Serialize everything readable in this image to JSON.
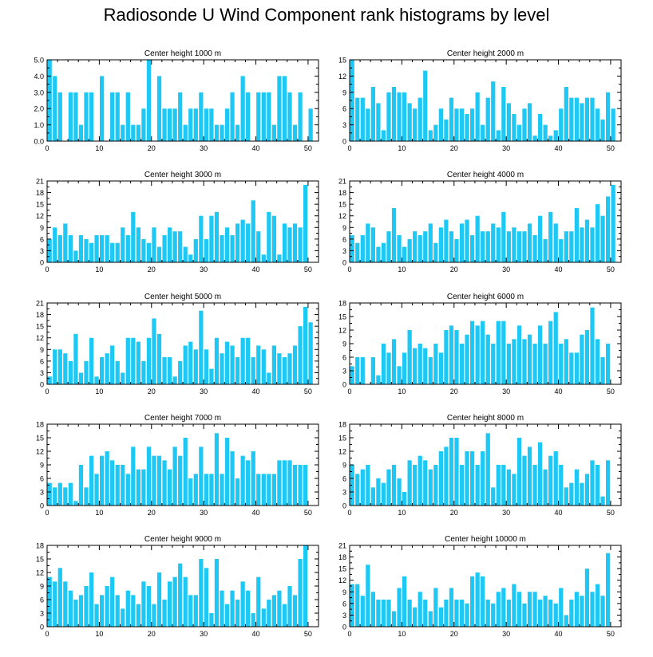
{
  "title": "Radiosonde U Wind Component rank histograms by level",
  "bar_color": "#1ec8f5",
  "chart_data": [
    {
      "type": "bar",
      "title": "Center height 1000 m",
      "xlim": [
        0,
        52
      ],
      "ylim": [
        0,
        5
      ],
      "yticks": [
        "0.0",
        "1.0",
        "2.0",
        "3.0",
        "4.0",
        "5.0"
      ],
      "xticks": [
        0,
        10,
        20,
        30,
        40,
        50
      ],
      "values": [
        5,
        4,
        3,
        0,
        3,
        3,
        1,
        3,
        3,
        0,
        4,
        0,
        3,
        3,
        1,
        3,
        1,
        1,
        2,
        5,
        0,
        4,
        2,
        2,
        2,
        3,
        1,
        2,
        2,
        3,
        2,
        2,
        1,
        1,
        2,
        3,
        1,
        4,
        3,
        0,
        3,
        3,
        3,
        1,
        4,
        4,
        3,
        1,
        3,
        0,
        2
      ]
    },
    {
      "type": "bar",
      "title": "Center height 2000 m",
      "xlim": [
        0,
        52
      ],
      "ylim": [
        0,
        15
      ],
      "yticks": [
        "0",
        "3",
        "6",
        "9",
        "12",
        "15"
      ],
      "xticks": [
        0,
        10,
        20,
        30,
        40,
        50
      ],
      "values": [
        15,
        8,
        8,
        6,
        10,
        7,
        2,
        9,
        10,
        9,
        9,
        7,
        6,
        8,
        13,
        2,
        3,
        6,
        4,
        8,
        6,
        6,
        5,
        6,
        9,
        3,
        8,
        11,
        2,
        10,
        7,
        5,
        3,
        6,
        7,
        1,
        5,
        3,
        1,
        2,
        6,
        10,
        8,
        8,
        7,
        8,
        8,
        6,
        4,
        9,
        6
      ]
    },
    {
      "type": "bar",
      "title": "Center height 3000 m",
      "xlim": [
        0,
        52
      ],
      "ylim": [
        0,
        21
      ],
      "yticks": [
        "0",
        "3",
        "6",
        "9",
        "12",
        "15",
        "18",
        "21"
      ],
      "xticks": [
        0,
        10,
        20,
        30,
        40,
        50
      ],
      "values": [
        6,
        9,
        7,
        10,
        7,
        3,
        7,
        6,
        5,
        7,
        7,
        7,
        5,
        5,
        9,
        7,
        13,
        9,
        6,
        5,
        9,
        4,
        7,
        9,
        8,
        8,
        4,
        2,
        6,
        12,
        6,
        12,
        13,
        7,
        9,
        7,
        10,
        11,
        10,
        16,
        8,
        2,
        13,
        12,
        2,
        10,
        9,
        10,
        9,
        20
      ]
    },
    {
      "type": "bar",
      "title": "Center height 4000 m",
      "xlim": [
        0,
        52
      ],
      "ylim": [
        0,
        21
      ],
      "yticks": [
        "0",
        "3",
        "6",
        "9",
        "12",
        "15",
        "18",
        "21"
      ],
      "xticks": [
        0,
        10,
        20,
        30,
        40,
        50
      ],
      "values": [
        7,
        5,
        7,
        10,
        9,
        4,
        5,
        8,
        14,
        7,
        4,
        6,
        8,
        7,
        8,
        10,
        5,
        9,
        11,
        8,
        6,
        10,
        11,
        7,
        12,
        8,
        8,
        10,
        9,
        13,
        8,
        9,
        8,
        8,
        10,
        7,
        12,
        6,
        13,
        10,
        6,
        8,
        8,
        14,
        9,
        11,
        9,
        15,
        12,
        17,
        20
      ]
    },
    {
      "type": "bar",
      "title": "Center height 5000 m",
      "xlim": [
        0,
        52
      ],
      "ylim": [
        0,
        21
      ],
      "yticks": [
        "0",
        "3",
        "6",
        "9",
        "12",
        "15",
        "18",
        "21"
      ],
      "xticks": [
        0,
        10,
        20,
        30,
        40,
        50
      ],
      "values": [
        2,
        9,
        9,
        8,
        6,
        13,
        3,
        6,
        12,
        2,
        7,
        8,
        10,
        6,
        3,
        12,
        12,
        11,
        6,
        12,
        17,
        13,
        7,
        7,
        2,
        6,
        10,
        11,
        9,
        19,
        9,
        4,
        12,
        8,
        11,
        10,
        7,
        12,
        12,
        7,
        10,
        9,
        3,
        10,
        8,
        7,
        8,
        10,
        15,
        20,
        16
      ]
    },
    {
      "type": "bar",
      "title": "Center height 6000 m",
      "xlim": [
        0,
        52
      ],
      "ylim": [
        0,
        18
      ],
      "yticks": [
        "0",
        "3",
        "6",
        "9",
        "12",
        "15",
        "18"
      ],
      "xticks": [
        0,
        10,
        20,
        30,
        40,
        50
      ],
      "values": [
        4,
        6,
        6,
        0,
        6,
        2,
        9,
        7,
        10,
        4,
        7,
        12,
        8,
        9,
        8,
        6,
        9,
        7,
        12,
        13,
        12,
        9,
        11,
        14,
        13,
        14,
        11,
        9,
        14,
        14,
        9,
        10,
        13,
        10,
        11,
        9,
        13,
        9,
        14,
        16,
        9,
        10,
        7,
        7,
        11,
        12,
        17,
        10,
        6,
        9,
        0
      ]
    },
    {
      "type": "bar",
      "title": "Center height 7000 m",
      "xlim": [
        0,
        52
      ],
      "ylim": [
        0,
        18
      ],
      "yticks": [
        "0",
        "3",
        "6",
        "9",
        "12",
        "15",
        "18"
      ],
      "xticks": [
        0,
        10,
        20,
        30,
        40,
        50
      ],
      "values": [
        5,
        4,
        5,
        4,
        5,
        1,
        9,
        4,
        11,
        7,
        11,
        12,
        10,
        9,
        9,
        7,
        13,
        8,
        8,
        13,
        11,
        11,
        10,
        8,
        13,
        11,
        15,
        6,
        7,
        13,
        7,
        7,
        16,
        7,
        15,
        12,
        6,
        11,
        10,
        12,
        7,
        7,
        7,
        7,
        10,
        10,
        10,
        9,
        9,
        9,
        0
      ]
    },
    {
      "type": "bar",
      "title": "Center height 8000 m",
      "xlim": [
        0,
        52
      ],
      "ylim": [
        0,
        18
      ],
      "yticks": [
        "0",
        "3",
        "6",
        "9",
        "12",
        "15",
        "18"
      ],
      "xticks": [
        0,
        10,
        20,
        30,
        40,
        50
      ],
      "values": [
        9,
        7,
        8,
        9,
        4,
        6,
        5,
        8,
        9,
        6,
        3,
        10,
        9,
        11,
        10,
        8,
        9,
        12,
        13,
        15,
        15,
        9,
        12,
        12,
        9,
        12,
        16,
        4,
        9,
        9,
        8,
        7,
        15,
        11,
        13,
        9,
        14,
        8,
        11,
        12,
        9,
        4,
        5,
        8,
        5,
        7,
        10,
        9,
        2,
        10,
        0
      ]
    },
    {
      "type": "bar",
      "title": "Center height 9000 m",
      "xlim": [
        0,
        52
      ],
      "ylim": [
        0,
        18
      ],
      "yticks": [
        "0",
        "3",
        "6",
        "9",
        "12",
        "15",
        "18"
      ],
      "xticks": [
        0,
        10,
        20,
        30,
        40,
        50
      ],
      "values": [
        11,
        10,
        13,
        10,
        8,
        6,
        7,
        9,
        12,
        5,
        7,
        9,
        11,
        7,
        4,
        8,
        7,
        5,
        10,
        9,
        5,
        12,
        6,
        10,
        11,
        14,
        11,
        7,
        7,
        15,
        13,
        3,
        15,
        8,
        5,
        8,
        6,
        10,
        8,
        3,
        11,
        4,
        6,
        7,
        8,
        5,
        9,
        7,
        15,
        18,
        0
      ]
    },
    {
      "type": "bar",
      "title": "Center height 10000 m",
      "xlim": [
        0,
        52
      ],
      "ylim": [
        0,
        21
      ],
      "yticks": [
        "0",
        "3",
        "6",
        "9",
        "12",
        "15",
        "18",
        "21"
      ],
      "xticks": [
        0,
        10,
        20,
        30,
        40,
        50
      ],
      "values": [
        11,
        11,
        8,
        16,
        9,
        7,
        7,
        7,
        4,
        10,
        13,
        7,
        5,
        9,
        7,
        4,
        10,
        5,
        7,
        10,
        7,
        7,
        6,
        13,
        14,
        13,
        7,
        6,
        9,
        10,
        7,
        11,
        9,
        6,
        9,
        9,
        7,
        8,
        7,
        6,
        10,
        3,
        7,
        9,
        8,
        15,
        9,
        11,
        8,
        19,
        0
      ]
    }
  ]
}
